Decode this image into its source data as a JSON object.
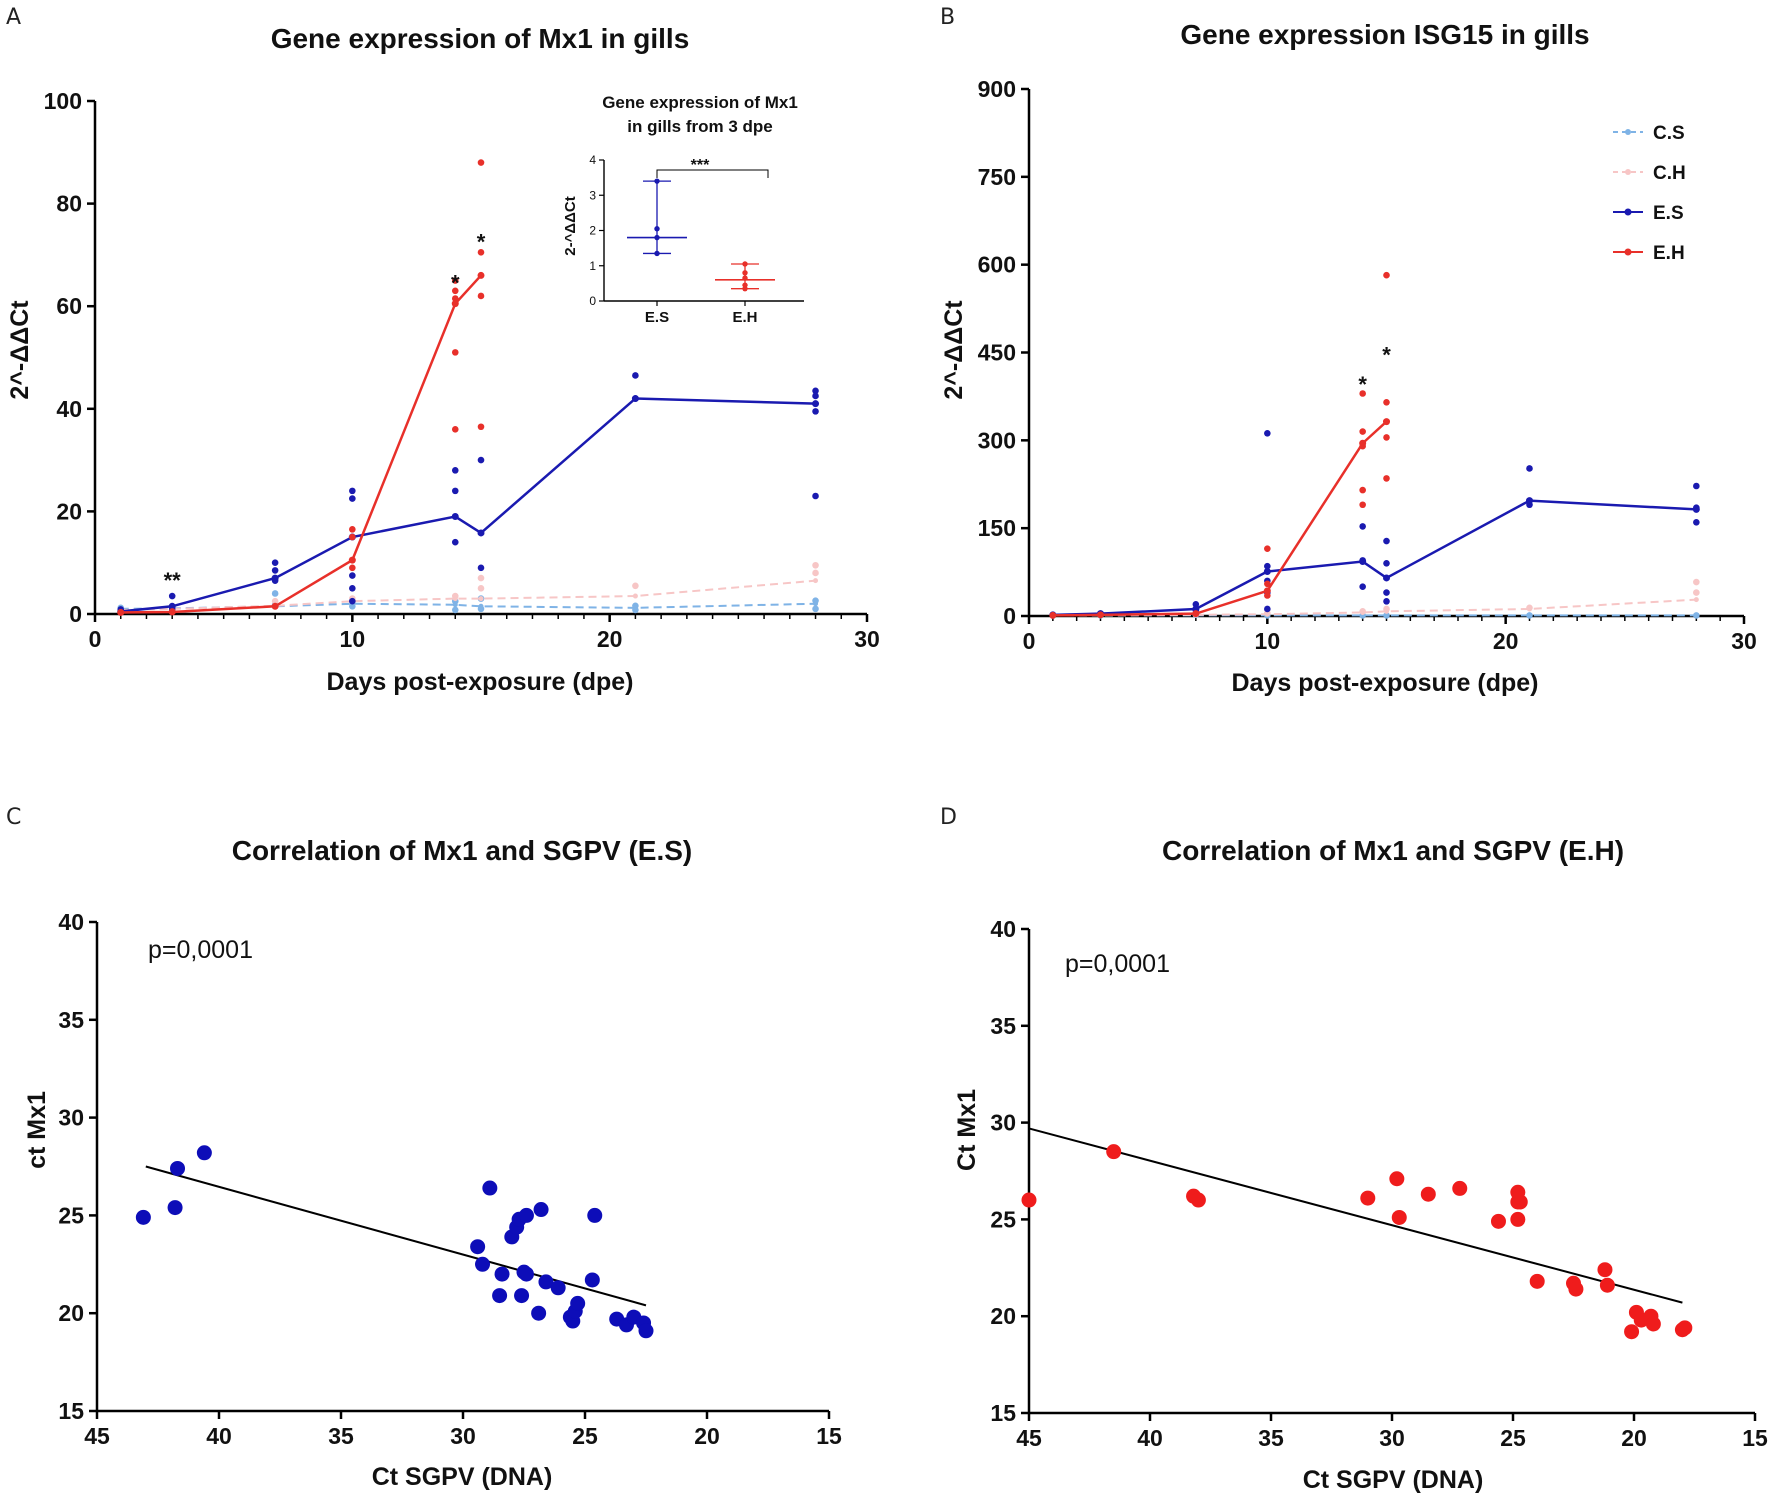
{
  "panels": {
    "a": {
      "letter": "A"
    },
    "b": {
      "letter": "B"
    },
    "c": {
      "letter": "C"
    },
    "d": {
      "letter": "D"
    }
  },
  "colors": {
    "C.S": "#7fb3e6",
    "C.H": "#f7c6c6",
    "E.S": "#1a1ab0",
    "E.H": "#e8302a",
    "axis": "#000000"
  },
  "chart_data": [
    {
      "id": "A",
      "type": "line",
      "title": "Gene expression of Mx1 in gills",
      "xlabel": "Days post-exposure (dpe)",
      "ylabel": "2^-ΔΔCt",
      "xlim": [
        0,
        30
      ],
      "ylim": [
        0,
        100
      ],
      "xticks": [
        0,
        10,
        20,
        30
      ],
      "yticks": [
        0,
        20,
        40,
        60,
        80,
        100
      ],
      "series": [
        {
          "name": "C.S",
          "x": [
            1,
            3,
            7,
            10,
            14,
            15,
            21,
            28
          ],
          "mean": [
            1.0,
            1.1,
            1.5,
            2.0,
            1.8,
            1.5,
            1.2,
            2.0
          ],
          "points": [
            [
              1,
              0.6
            ],
            [
              1,
              1.2
            ],
            [
              3,
              0.7
            ],
            [
              3,
              1.4
            ],
            [
              7,
              1.8
            ],
            [
              7,
              4.0
            ],
            [
              10,
              1.5
            ],
            [
              10,
              2.6
            ],
            [
              14,
              0.8
            ],
            [
              14,
              2.5
            ],
            [
              15,
              1.0
            ],
            [
              15,
              3.0
            ],
            [
              21,
              0.8
            ],
            [
              21,
              1.6
            ],
            [
              28,
              1.0
            ],
            [
              28,
              2.6
            ]
          ]
        },
        {
          "name": "C.H",
          "x": [
            1,
            3,
            7,
            10,
            14,
            15,
            21,
            28
          ],
          "mean": [
            0.8,
            1.0,
            1.6,
            2.5,
            3.0,
            3.0,
            3.5,
            6.5
          ],
          "points": [
            [
              1,
              0.5
            ],
            [
              3,
              1.5
            ],
            [
              7,
              2.5
            ],
            [
              10,
              3.0
            ],
            [
              14,
              3.5
            ],
            [
              15,
              5.0
            ],
            [
              15,
              7.0
            ],
            [
              21,
              5.5
            ],
            [
              28,
              8.0
            ],
            [
              28,
              9.5
            ]
          ]
        },
        {
          "name": "E.S",
          "x": [
            1,
            3,
            7,
            10,
            14,
            15,
            21,
            28
          ],
          "mean": [
            0.5,
            1.5,
            7.0,
            15.0,
            19.0,
            15.8,
            42.0,
            41.0
          ],
          "points": [
            [
              1,
              0.4
            ],
            [
              1,
              0.9
            ],
            [
              3,
              1.0
            ],
            [
              3,
              3.5
            ],
            [
              7,
              6.5
            ],
            [
              7,
              8.5
            ],
            [
              7,
              10.0
            ],
            [
              10,
              2.5
            ],
            [
              10,
              5.0
            ],
            [
              10,
              7.5
            ],
            [
              10,
              22.5
            ],
            [
              10,
              24.0
            ],
            [
              14,
              14.0
            ],
            [
              14,
              24.0
            ],
            [
              14,
              28.0
            ],
            [
              15,
              9.0
            ],
            [
              15,
              30.0
            ],
            [
              21,
              42.0
            ],
            [
              21,
              46.5
            ],
            [
              28,
              23.0
            ],
            [
              28,
              39.5
            ],
            [
              28,
              42.5
            ],
            [
              28,
              43.5
            ]
          ]
        },
        {
          "name": "E.H",
          "x": [
            1,
            3,
            7,
            10,
            14,
            15
          ],
          "mean": [
            0.3,
            0.4,
            1.5,
            10.5,
            60.5,
            66.0
          ],
          "points": [
            [
              1,
              0.3
            ],
            [
              3,
              0.5
            ],
            [
              7,
              1.5
            ],
            [
              10,
              9.0
            ],
            [
              10,
              15.0
            ],
            [
              10,
              16.5
            ],
            [
              14,
              36.0
            ],
            [
              14,
              51.0
            ],
            [
              14,
              61.5
            ],
            [
              14,
              63.0
            ],
            [
              14,
              65.0
            ],
            [
              15,
              36.5
            ],
            [
              15,
              62.0
            ],
            [
              15,
              70.5
            ],
            [
              15,
              88.0
            ]
          ]
        }
      ],
      "annotations": [
        {
          "text": "**",
          "x": 3,
          "y": 7
        },
        {
          "text": "*",
          "x": 14,
          "y": 65
        },
        {
          "text": "*",
          "x": 15,
          "y": 73
        }
      ]
    },
    {
      "id": "A-inset",
      "type": "scatter",
      "title_line1": "Gene expression of Mx1",
      "title_line2": "in gills from 3 dpe",
      "ylabel": "2-^ΔΔCt",
      "ylim": [
        0,
        4
      ],
      "yticks": [
        0,
        1,
        2,
        3,
        4
      ],
      "categories": [
        "E.S",
        "E.H"
      ],
      "significance": "***",
      "groups": [
        {
          "name": "E.S",
          "median": 1.8,
          "min": 1.35,
          "max": 3.4,
          "values": [
            1.35,
            1.8,
            2.05,
            3.4
          ]
        },
        {
          "name": "E.H",
          "median": 0.6,
          "min": 0.35,
          "max": 1.05,
          "values": [
            0.35,
            0.45,
            0.65,
            0.8,
            1.05
          ]
        }
      ]
    },
    {
      "id": "B",
      "type": "line",
      "title": "Gene expression ISG15 in gills",
      "xlabel": "Days post-exposure (dpe)",
      "ylabel": "2^-ΔΔCt",
      "xlim": [
        0,
        30
      ],
      "ylim": [
        0,
        900
      ],
      "xticks": [
        0,
        10,
        20,
        30
      ],
      "yticks": [
        0,
        150,
        300,
        450,
        600,
        750,
        900
      ],
      "legend": [
        "C.S",
        "C.H",
        "E.S",
        "E.H"
      ],
      "series": [
        {
          "name": "C.S",
          "x": [
            1,
            3,
            7,
            10,
            14,
            15,
            21,
            28
          ],
          "mean": [
            1,
            1,
            1,
            1,
            1,
            1,
            1,
            1
          ],
          "points": [
            [
              1,
              1
            ],
            [
              3,
              1
            ],
            [
              7,
              2
            ],
            [
              10,
              1
            ],
            [
              14,
              1
            ],
            [
              15,
              1
            ],
            [
              21,
              1
            ],
            [
              28,
              1
            ]
          ]
        },
        {
          "name": "C.H",
          "x": [
            1,
            3,
            7,
            10,
            14,
            15,
            21,
            28
          ],
          "mean": [
            1,
            1,
            2,
            3,
            6,
            8,
            12,
            28
          ],
          "points": [
            [
              7,
              3
            ],
            [
              10,
              5
            ],
            [
              14,
              8
            ],
            [
              15,
              12
            ],
            [
              21,
              14
            ],
            [
              28,
              40
            ],
            [
              28,
              58
            ]
          ]
        },
        {
          "name": "E.S",
          "x": [
            1,
            3,
            7,
            10,
            14,
            15,
            21,
            28
          ],
          "mean": [
            2,
            4,
            12,
            76,
            93,
            65,
            197,
            182
          ],
          "points": [
            [
              1,
              1
            ],
            [
              3,
              4
            ],
            [
              7,
              10
            ],
            [
              7,
              20
            ],
            [
              10,
              12
            ],
            [
              10,
              40
            ],
            [
              10,
              60
            ],
            [
              10,
              85
            ],
            [
              10,
              312
            ],
            [
              14,
              50
            ],
            [
              14,
              95
            ],
            [
              14,
              153
            ],
            [
              15,
              25
            ],
            [
              15,
              40
            ],
            [
              15,
              90
            ],
            [
              15,
              128
            ],
            [
              21,
              190
            ],
            [
              21,
              252
            ],
            [
              28,
              160
            ],
            [
              28,
              185
            ],
            [
              28,
              222
            ]
          ]
        },
        {
          "name": "E.H",
          "x": [
            1,
            3,
            7,
            10,
            14,
            15
          ],
          "mean": [
            1,
            2,
            4,
            43,
            295,
            332
          ],
          "points": [
            [
              10,
              35
            ],
            [
              10,
              55
            ],
            [
              10,
              115
            ],
            [
              14,
              190
            ],
            [
              14,
              215
            ],
            [
              14,
              290
            ],
            [
              14,
              315
            ],
            [
              14,
              380
            ],
            [
              15,
              235
            ],
            [
              15,
              305
            ],
            [
              15,
              365
            ],
            [
              15,
              582
            ]
          ]
        }
      ],
      "annotations": [
        {
          "text": "*",
          "x": 14,
          "y": 400
        },
        {
          "text": "*",
          "x": 15,
          "y": 450
        }
      ]
    },
    {
      "id": "C",
      "type": "scatter",
      "title": "Correlation of Mx1 and SGPV (E.S)",
      "xlabel": "Ct SGPV (DNA)",
      "ylabel": "ct Mx1",
      "xlim": [
        45,
        15
      ],
      "ylim": [
        15,
        40
      ],
      "xticks": [
        45,
        40,
        35,
        30,
        25,
        20,
        15
      ],
      "yticks": [
        15,
        20,
        25,
        30,
        35,
        40
      ],
      "annotation": "p=0,0001",
      "regression": {
        "x1": 43,
        "y1": 27.5,
        "x2": 22.5,
        "y2": 20.4
      },
      "points": [
        [
          43.1,
          24.9
        ],
        [
          41.8,
          25.4
        ],
        [
          41.7,
          27.4
        ],
        [
          40.6,
          28.2
        ],
        [
          29.4,
          23.4
        ],
        [
          29.2,
          22.5
        ],
        [
          28.9,
          26.4
        ],
        [
          28.5,
          20.9
        ],
        [
          28.4,
          22.0
        ],
        [
          28.0,
          23.9
        ],
        [
          27.8,
          24.4
        ],
        [
          27.7,
          24.8
        ],
        [
          27.6,
          20.9
        ],
        [
          27.5,
          22.1
        ],
        [
          27.4,
          25.0
        ],
        [
          27.4,
          22.0
        ],
        [
          26.9,
          20.0
        ],
        [
          26.8,
          25.3
        ],
        [
          26.6,
          21.6
        ],
        [
          26.1,
          21.3
        ],
        [
          25.6,
          19.8
        ],
        [
          25.5,
          19.6
        ],
        [
          25.4,
          20.1
        ],
        [
          25.3,
          20.5
        ],
        [
          24.7,
          21.7
        ],
        [
          24.6,
          25.0
        ],
        [
          23.7,
          19.7
        ],
        [
          23.3,
          19.4
        ],
        [
          23.0,
          19.8
        ],
        [
          22.6,
          19.5
        ],
        [
          22.5,
          19.1
        ]
      ],
      "color": "#0d0db8"
    },
    {
      "id": "D",
      "type": "scatter",
      "title": "Correlation of Mx1 and SGPV (E.H)",
      "xlabel": "Ct SGPV (DNA)",
      "ylabel": "Ct Mx1",
      "xlim": [
        45,
        15
      ],
      "ylim": [
        15,
        40
      ],
      "xticks": [
        45,
        40,
        35,
        30,
        25,
        20,
        15
      ],
      "yticks": [
        15,
        20,
        25,
        30,
        35,
        40
      ],
      "annotation": "p=0,0001",
      "regression": {
        "x1": 45,
        "y1": 29.7,
        "x2": 18,
        "y2": 20.7
      },
      "points": [
        [
          45,
          26.0
        ],
        [
          41.5,
          28.5
        ],
        [
          38.2,
          26.2
        ],
        [
          38.0,
          26.0
        ],
        [
          31.0,
          26.1
        ],
        [
          29.8,
          27.1
        ],
        [
          29.7,
          25.1
        ],
        [
          28.5,
          26.3
        ],
        [
          27.2,
          26.6
        ],
        [
          25.6,
          24.9
        ],
        [
          24.8,
          25.0
        ],
        [
          24.8,
          25.9
        ],
        [
          24.8,
          26.4
        ],
        [
          24.7,
          25.9
        ],
        [
          24.0,
          21.8
        ],
        [
          22.5,
          21.7
        ],
        [
          22.4,
          21.4
        ],
        [
          21.2,
          22.4
        ],
        [
          21.1,
          21.6
        ],
        [
          20.1,
          19.2
        ],
        [
          19.9,
          20.2
        ],
        [
          19.7,
          19.8
        ],
        [
          19.3,
          20.0
        ],
        [
          19.2,
          19.6
        ],
        [
          18.0,
          19.3
        ],
        [
          17.9,
          19.4
        ]
      ],
      "color": "#ef1c1c"
    }
  ]
}
